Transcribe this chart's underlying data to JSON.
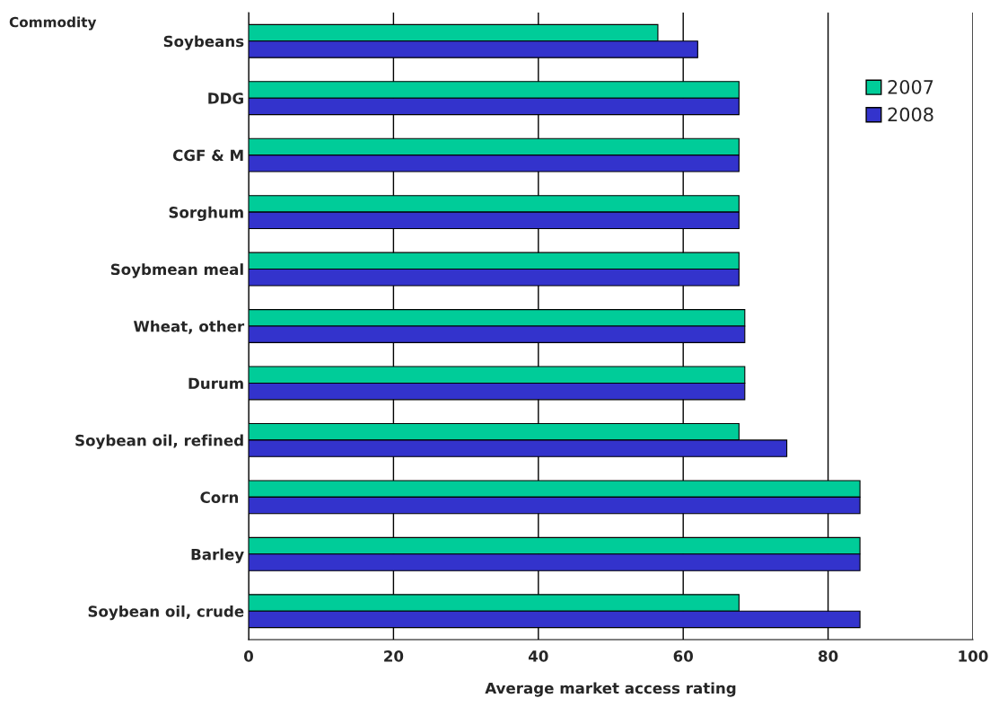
{
  "chart_data": {
    "type": "bar",
    "orientation": "horizontal",
    "categories": [
      "Soybeans",
      "DDG",
      "CGF & M",
      "Sorghum",
      "Soybmean meal",
      "Wheat, other",
      "Durum",
      "Soybean oil, refined",
      "Corn ",
      "Barley",
      "Soybean oil, crude"
    ],
    "series": [
      {
        "name": "2007",
        "color": "#00cc99",
        "values": [
          56.5,
          67.7,
          67.7,
          67.7,
          67.7,
          68.5,
          68.5,
          67.7,
          84.4,
          84.4,
          67.7
        ]
      },
      {
        "name": "2008",
        "color": "#3333cc",
        "values": [
          62.0,
          67.7,
          67.7,
          67.7,
          67.7,
          68.5,
          68.5,
          74.3,
          84.4,
          84.4,
          84.4
        ]
      }
    ],
    "xlabel": "Average market access rating",
    "ylabel": "Commodity",
    "xlim": [
      0,
      100
    ],
    "xticks": [
      0,
      20,
      40,
      60,
      80,
      100
    ],
    "grid": "x",
    "legend": "top right"
  }
}
